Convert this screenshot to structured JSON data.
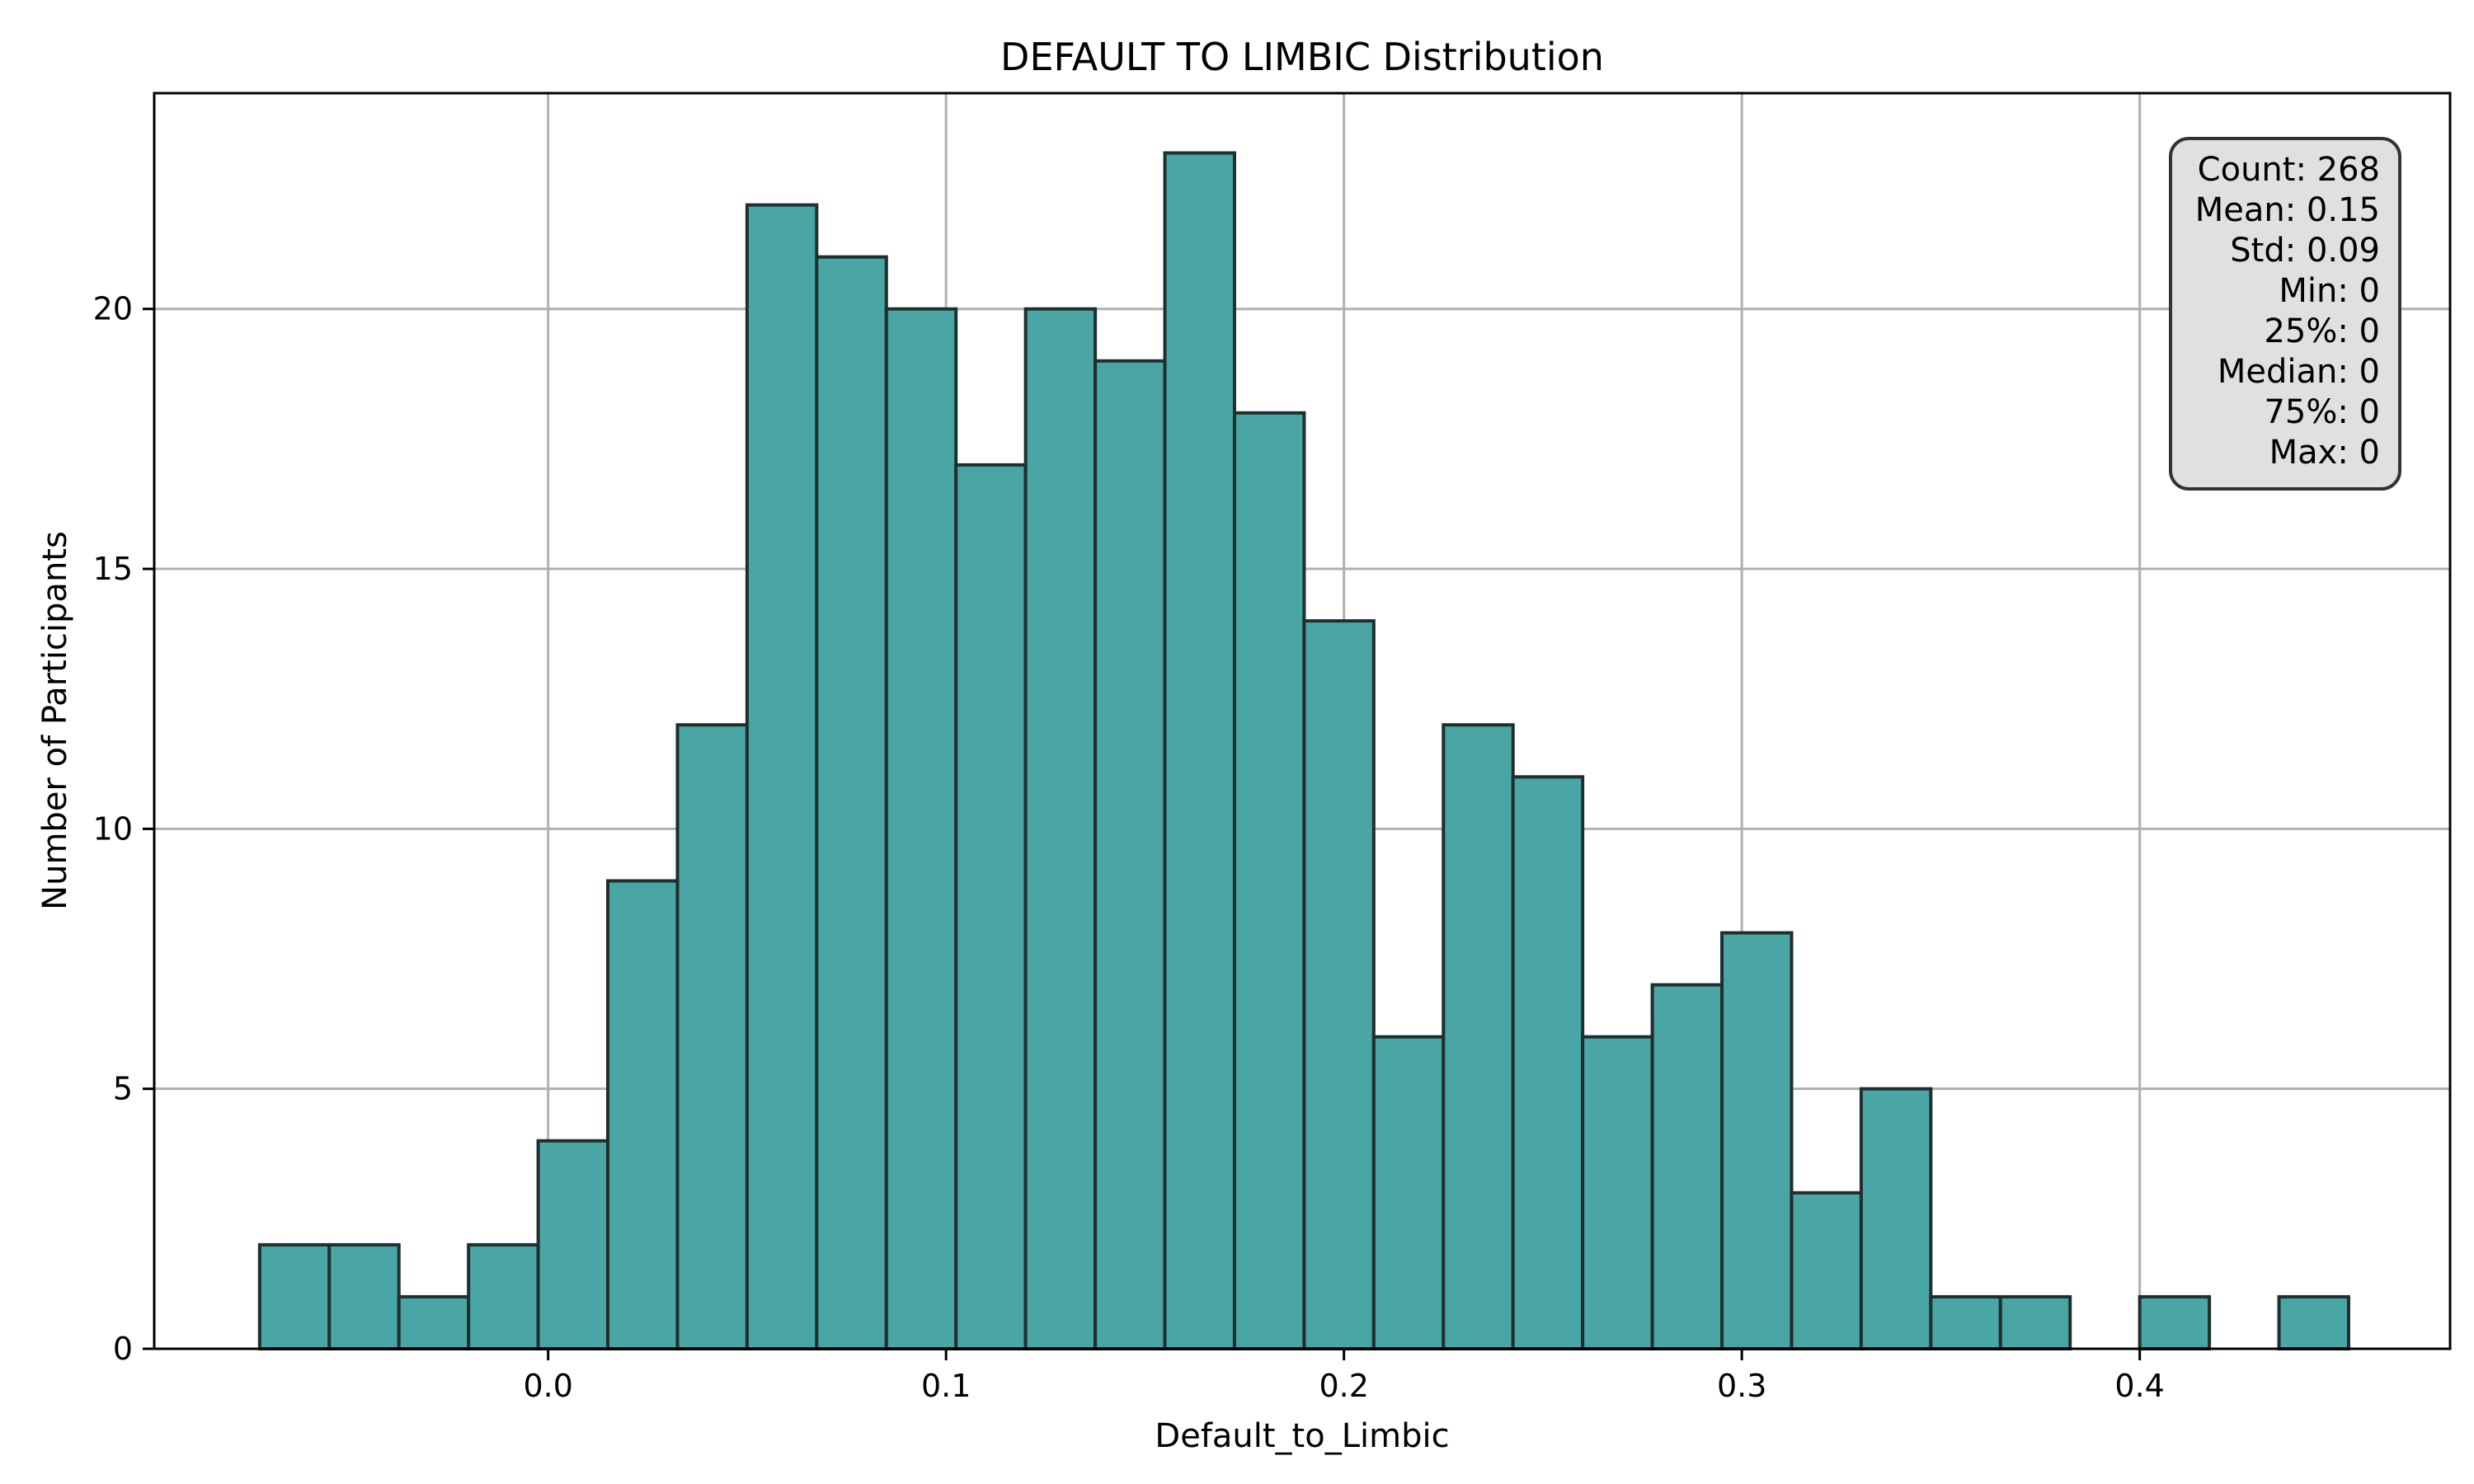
{
  "chart_data": {
    "type": "bar",
    "title": "DEFAULT TO LIMBIC Distribution",
    "xlabel": "Default_to_Limbic",
    "ylabel": "Number of Participants",
    "xlim": [
      -0.099,
      0.478
    ],
    "ylim": [
      0,
      24.15
    ],
    "x_ticks": [
      0.0,
      0.1,
      0.2,
      0.3,
      0.4
    ],
    "x_tick_labels": [
      "0.0",
      "0.1",
      "0.2",
      "0.3",
      "0.4"
    ],
    "y_ticks": [
      0,
      5,
      10,
      15,
      20
    ],
    "y_tick_labels": [
      "0",
      "5",
      "10",
      "15",
      "20"
    ],
    "bin_start": -0.0725,
    "bin_width": 0.0175,
    "values": [
      2,
      2,
      1,
      2,
      4,
      9,
      12,
      22,
      21,
      20,
      17,
      20,
      19,
      23,
      18,
      14,
      6,
      12,
      11,
      6,
      7,
      8,
      3,
      5,
      1,
      1,
      0,
      1,
      0,
      1
    ],
    "bar_color": "#4aa5a5",
    "edge_color": "#1f2f2f",
    "grid": true,
    "stats_box": {
      "position": "top-right",
      "lines": [
        "Count: 268",
        "Mean: 0.15",
        "Std: 0.09",
        "Min: 0",
        "25%: 0",
        "Median: 0",
        "75%: 0",
        "Max: 0"
      ]
    }
  }
}
